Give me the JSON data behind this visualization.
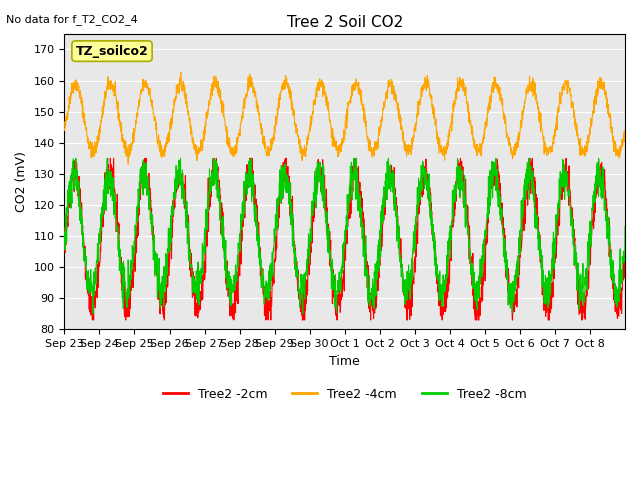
{
  "title": "Tree 2 Soil CO2",
  "subtitle": "No data for f_T2_CO2_4",
  "ylabel": "CO2 (mV)",
  "xlabel": "Time",
  "ylim": [
    80,
    175
  ],
  "yticks": [
    80,
    90,
    100,
    110,
    120,
    130,
    140,
    150,
    160,
    170
  ],
  "xtick_labels": [
    "Sep 23",
    "Sep 24",
    "Sep 25",
    "Sep 26",
    "Sep 27",
    "Sep 28",
    "Sep 29",
    "Sep 30",
    "Oct 1",
    "Oct 2",
    "Oct 3",
    "Oct 4",
    "Oct 5",
    "Oct 6",
    "Oct 7",
    "Oct 8"
  ],
  "colors": {
    "red": "#FF0000",
    "orange": "#FFA500",
    "green": "#00CC00",
    "background": "#E8E8E8",
    "legend_box_bg": "#FFFF99",
    "legend_box_edge": "#AAAA00"
  },
  "legend_entries": [
    "Tree2 -2cm",
    "Tree2 -4cm",
    "Tree2 -8cm"
  ],
  "annotation_box": "TZ_soilco2",
  "num_days": 16
}
